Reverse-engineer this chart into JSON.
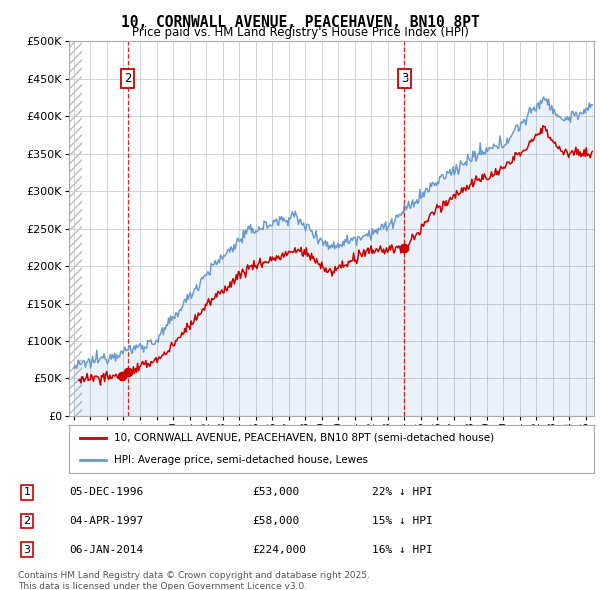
{
  "title": "10, CORNWALL AVENUE, PEACEHAVEN, BN10 8PT",
  "subtitle": "Price paid vs. HM Land Registry's House Price Index (HPI)",
  "red_label": "10, CORNWALL AVENUE, PEACEHAVEN, BN10 8PT (semi-detached house)",
  "blue_label": "HPI: Average price, semi-detached house, Lewes",
  "footnote": "Contains HM Land Registry data © Crown copyright and database right 2025.\nThis data is licensed under the Open Government Licence v3.0.",
  "transactions": [
    {
      "num": 1,
      "date": "05-DEC-1996",
      "price": 53000,
      "pct": "22%",
      "dir": "↓",
      "x_year": 1996.92
    },
    {
      "num": 2,
      "date": "04-APR-1997",
      "price": 58000,
      "pct": "15%",
      "dir": "↓",
      "x_year": 1997.25
    },
    {
      "num": 3,
      "date": "06-JAN-2014",
      "price": 224000,
      "pct": "16%",
      "dir": "↓",
      "x_year": 2014.02
    }
  ],
  "ylim": [
    0,
    500000
  ],
  "yticks": [
    0,
    50000,
    100000,
    150000,
    200000,
    250000,
    300000,
    350000,
    400000,
    450000,
    500000
  ],
  "xlim_start": 1993.7,
  "xlim_end": 2025.5,
  "background_hatch_end": 1994.5,
  "red_line_color": "#cc0000",
  "blue_line_color": "#6699cc",
  "annotation_box_color": "#cc0000",
  "grid_color": "#cccccc",
  "hatch_color": "#dddddd",
  "anno2_y": 450000,
  "anno3_y": 450000
}
